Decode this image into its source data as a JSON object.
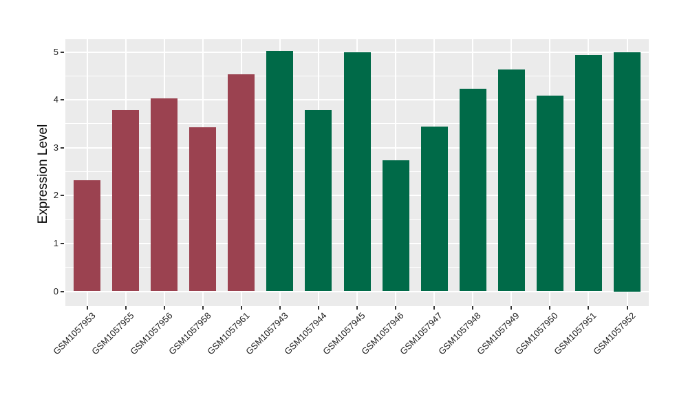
{
  "chart_data": {
    "type": "bar",
    "title": "",
    "xlabel": "",
    "ylabel": "Expression Level",
    "categories": [
      "GSM1057953",
      "GSM1057955",
      "GSM1057956",
      "GSM1057958",
      "GSM1057961",
      "GSM1057943",
      "GSM1057944",
      "GSM1057945",
      "GSM1057946",
      "GSM1057947",
      "GSM1057948",
      "GSM1057949",
      "GSM1057950",
      "GSM1057951",
      "GSM1057952"
    ],
    "values": [
      2.32,
      3.78,
      4.03,
      3.42,
      4.53,
      5.02,
      3.78,
      4.99,
      2.74,
      3.44,
      4.23,
      4.63,
      4.09,
      4.93,
      5.0
    ],
    "groups": [
      "group1",
      "group1",
      "group1",
      "group1",
      "group1",
      "group2",
      "group2",
      "group2",
      "group2",
      "group2",
      "group2",
      "group2",
      "group2",
      "group2",
      "group2"
    ],
    "group_colors": {
      "group1": "#9B4250",
      "group2": "#006A48"
    },
    "yticks": [
      0,
      1,
      2,
      3,
      4,
      5
    ],
    "ylim": [
      0,
      5.02
    ],
    "grid": true,
    "legend": "none",
    "panel_background": "#EBEBEB",
    "grid_color": "#FFFFFF",
    "tick_color": "#333333",
    "text_color": "#1c1c1c"
  }
}
